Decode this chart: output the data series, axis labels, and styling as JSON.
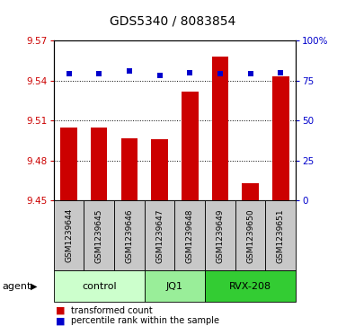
{
  "title": "GDS5340 / 8083854",
  "samples": [
    "GSM1239644",
    "GSM1239645",
    "GSM1239646",
    "GSM1239647",
    "GSM1239648",
    "GSM1239649",
    "GSM1239650",
    "GSM1239651"
  ],
  "bar_values": [
    9.505,
    9.505,
    9.497,
    9.496,
    9.532,
    9.558,
    9.463,
    9.543
  ],
  "percentile_values": [
    9.545,
    9.545,
    9.547,
    9.544,
    9.546,
    9.545,
    9.545,
    9.546
  ],
  "bar_bottom": 9.45,
  "ylim_left": [
    9.45,
    9.57
  ],
  "ylim_right": [
    0,
    100
  ],
  "yticks_left": [
    9.45,
    9.48,
    9.51,
    9.54,
    9.57
  ],
  "yticks_right": [
    0,
    25,
    50,
    75,
    100
  ],
  "bar_color": "#cc0000",
  "percentile_color": "#0000cc",
  "group_boundaries": [
    [
      0,
      2,
      "control",
      "#ccffcc"
    ],
    [
      3,
      4,
      "JQ1",
      "#99ee99"
    ],
    [
      5,
      7,
      "RVX-208",
      "#33cc33"
    ]
  ],
  "agent_label": "agent",
  "legend_items": [
    {
      "label": "transformed count",
      "color": "#cc0000"
    },
    {
      "label": "percentile rank within the sample",
      "color": "#0000cc"
    }
  ],
  "grid_color": "black",
  "tick_label_color_left": "#cc0000",
  "tick_label_color_right": "#0000cc",
  "background_label": "#c8c8c8",
  "title_fontsize": 10,
  "axis_fontsize": 7.5,
  "label_fontsize": 6.5,
  "group_fontsize": 8
}
